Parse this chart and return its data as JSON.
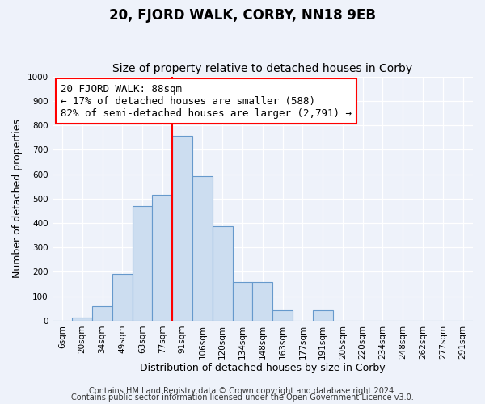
{
  "title": "20, FJORD WALK, CORBY, NN18 9EB",
  "subtitle": "Size of property relative to detached houses in Corby",
  "xlabel": "Distribution of detached houses by size in Corby",
  "ylabel": "Number of detached properties",
  "bar_labels": [
    "6sqm",
    "20sqm",
    "34sqm",
    "49sqm",
    "63sqm",
    "77sqm",
    "91sqm",
    "106sqm",
    "120sqm",
    "134sqm",
    "148sqm",
    "163sqm",
    "177sqm",
    "191sqm",
    "205sqm",
    "220sqm",
    "234sqm",
    "248sqm",
    "262sqm",
    "277sqm",
    "291sqm"
  ],
  "bar_values": [
    0,
    13,
    60,
    193,
    470,
    515,
    758,
    593,
    388,
    160,
    160,
    43,
    0,
    44,
    0,
    0,
    0,
    0,
    0,
    0,
    0
  ],
  "bar_color": "#ccddf0",
  "bar_edge_color": "#6699cc",
  "vline_x": 5.5,
  "vline_color": "red",
  "annotation_text": "20 FJORD WALK: 88sqm\n← 17% of detached houses are smaller (588)\n82% of semi-detached houses are larger (2,791) →",
  "annotation_box_color": "white",
  "annotation_box_edge": "red",
  "ylim": [
    0,
    1000
  ],
  "yticks": [
    0,
    100,
    200,
    300,
    400,
    500,
    600,
    700,
    800,
    900,
    1000
  ],
  "footer1": "Contains HM Land Registry data © Crown copyright and database right 2024.",
  "footer2": "Contains public sector information licensed under the Open Government Licence v3.0.",
  "bg_color": "#eef2fa",
  "plot_bg_color": "#eef2fa",
  "grid_color": "#ffffff",
  "title_fontsize": 12,
  "subtitle_fontsize": 10,
  "axis_label_fontsize": 9,
  "tick_fontsize": 7.5,
  "annotation_fontsize": 9,
  "footer_fontsize": 7
}
